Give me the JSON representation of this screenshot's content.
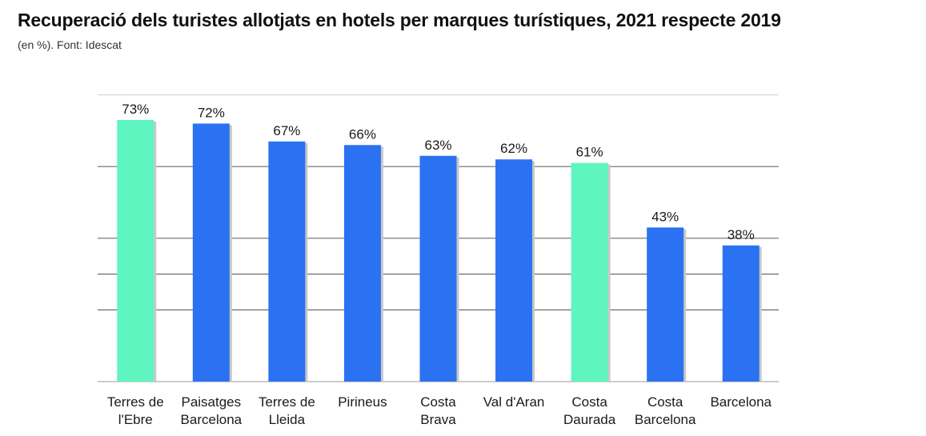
{
  "title": "Recuperació dels turistes allotjats en hotels per marques turístiques, 2021 respecte 2019",
  "subtitle": "(en %). Font: Idescat",
  "colors": {
    "highlight": "#5ef5c0",
    "default": "#2b72f2",
    "grid": "#6b6b6b",
    "grid_top": "#cfcfcf"
  },
  "chart_data": {
    "type": "bar",
    "title": "Recuperació dels turistes allotjats en hotels per marques turístiques, 2021 respecte 2019",
    "subtitle": "(en %). Font: Idescat",
    "xlabel": "",
    "ylabel": "",
    "ylim": [
      0,
      80
    ],
    "grid": true,
    "categories": [
      [
        "Terres de",
        "l'Ebre"
      ],
      [
        "Paisatges",
        "Barcelona"
      ],
      [
        "Terres de",
        "Lleida"
      ],
      [
        "Pirineus"
      ],
      [
        "Costa",
        "Brava"
      ],
      [
        "Val d'Aran"
      ],
      [
        "Costa",
        "Daurada"
      ],
      [
        "Costa",
        "Barcelona"
      ],
      [
        "Barcelona"
      ]
    ],
    "values": [
      73,
      72,
      67,
      66,
      63,
      62,
      61,
      43,
      38
    ],
    "value_labels": [
      "73%",
      "72%",
      "67%",
      "66%",
      "63%",
      "62%",
      "61%",
      "43%",
      "38%"
    ],
    "highlighted": [
      true,
      false,
      false,
      false,
      false,
      false,
      true,
      false,
      false
    ]
  }
}
